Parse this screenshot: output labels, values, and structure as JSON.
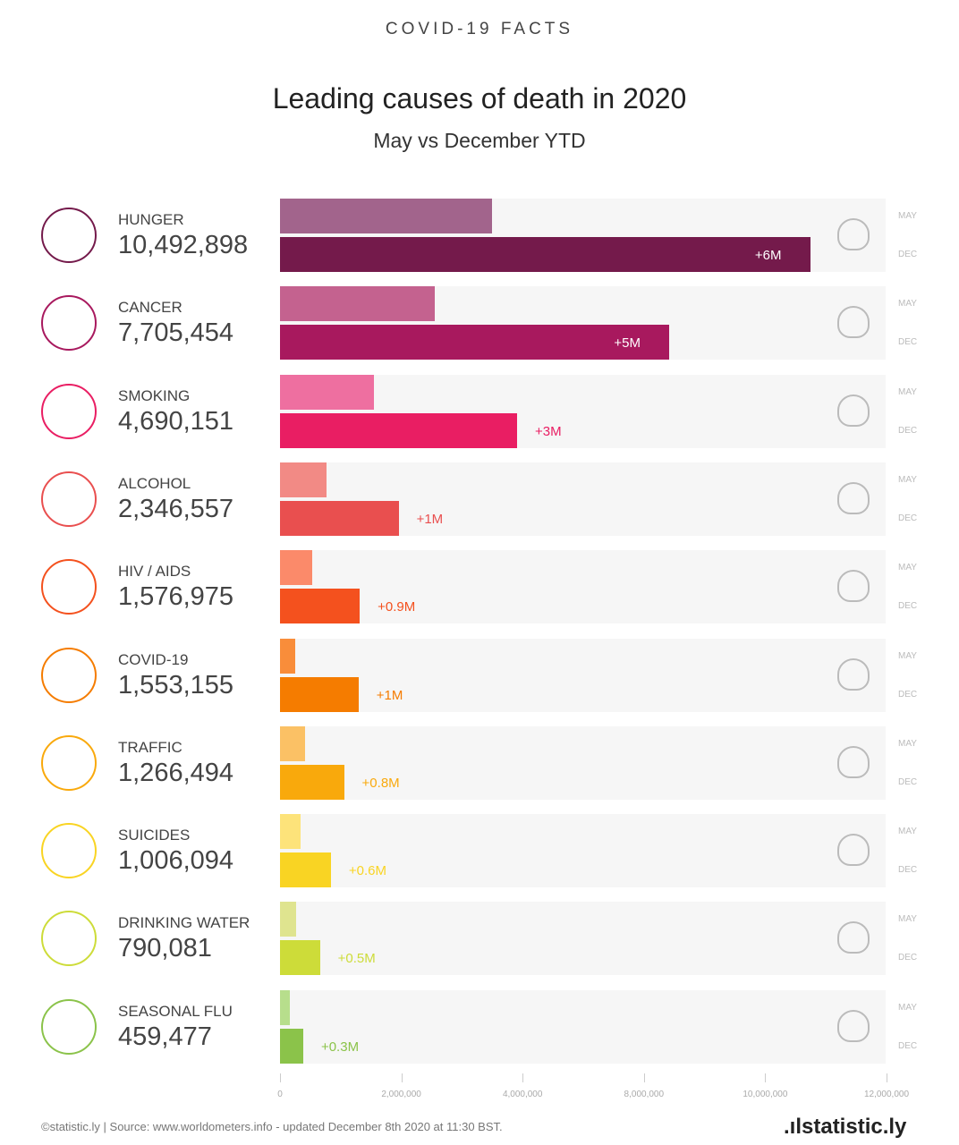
{
  "header": {
    "kicker": "COVID-19 FACTS",
    "title": "Leading causes of death in 2020",
    "subtitle": "May vs December YTD"
  },
  "chart_data": {
    "type": "bar",
    "orientation": "horizontal",
    "title": "Leading causes of death in 2020",
    "subtitle": "May vs December YTD",
    "categories": [
      "HUNGER",
      "CANCER",
      "SMOKING",
      "ALCOHOL",
      "HIV / AIDS",
      "COVID-19",
      "TRAFFIC",
      "SUICIDES",
      "DRINKING WATER",
      "SEASONAL FLU"
    ],
    "totals": [
      "10,492,898",
      "7,705,454",
      "4,690,151",
      "2,346,557",
      "1,576,975",
      "1,553,155",
      "1,266,494",
      "1,006,094",
      "790,081",
      "459,477"
    ],
    "series": [
      {
        "name": "MAY",
        "values": [
          4190000,
          3060000,
          1860000,
          920000,
          640000,
          300000,
          500000,
          410000,
          320000,
          190000
        ]
      },
      {
        "name": "DEC",
        "values": [
          10492898,
          7705454,
          4690151,
          2346557,
          1576975,
          1553155,
          1266494,
          1006094,
          790081,
          459477
        ]
      }
    ],
    "diff_labels": [
      "+6M",
      "+5M",
      "+3M",
      "+1M",
      "+0.9M",
      "+1M",
      "+0.8M",
      "+0.6M",
      "+0.5M",
      "+0.3M"
    ],
    "may_colors": [
      "#a2648c",
      "#c4628f",
      "#ee6fa0",
      "#f28a85",
      "#fb8a6a",
      "#f98d3a",
      "#fbc165",
      "#fde37a",
      "#dfe48f",
      "#b7de8c"
    ],
    "dec_colors": [
      "#741a4b",
      "#a8195e",
      "#e91e63",
      "#e94f4f",
      "#f4511e",
      "#f57c00",
      "#f9a90c",
      "#f9d423",
      "#cddc39",
      "#8bc34a"
    ],
    "icons": [
      "wheat-icon",
      "dna-icon",
      "cigarette-icon",
      "wine-glass-icon",
      "syringe-icon",
      "virus-icon",
      "car-icon",
      "sad-face-icon",
      "water-drop-icon",
      "sneeze-face-icon"
    ],
    "row_labels": [
      "MAY",
      "DEC"
    ],
    "xlim": [
      0,
      12000000
    ],
    "x_tick_labels": [
      "0",
      "2,000,000",
      "4,000,000",
      "8,000,000",
      "10,000,000",
      "12,000,000"
    ]
  },
  "footer": {
    "source": "©statistic.ly | Source: www.worldometers.info - updated December 8th 2020 at 11:30 BST.",
    "logo": ".ılstatistic.ly"
  }
}
